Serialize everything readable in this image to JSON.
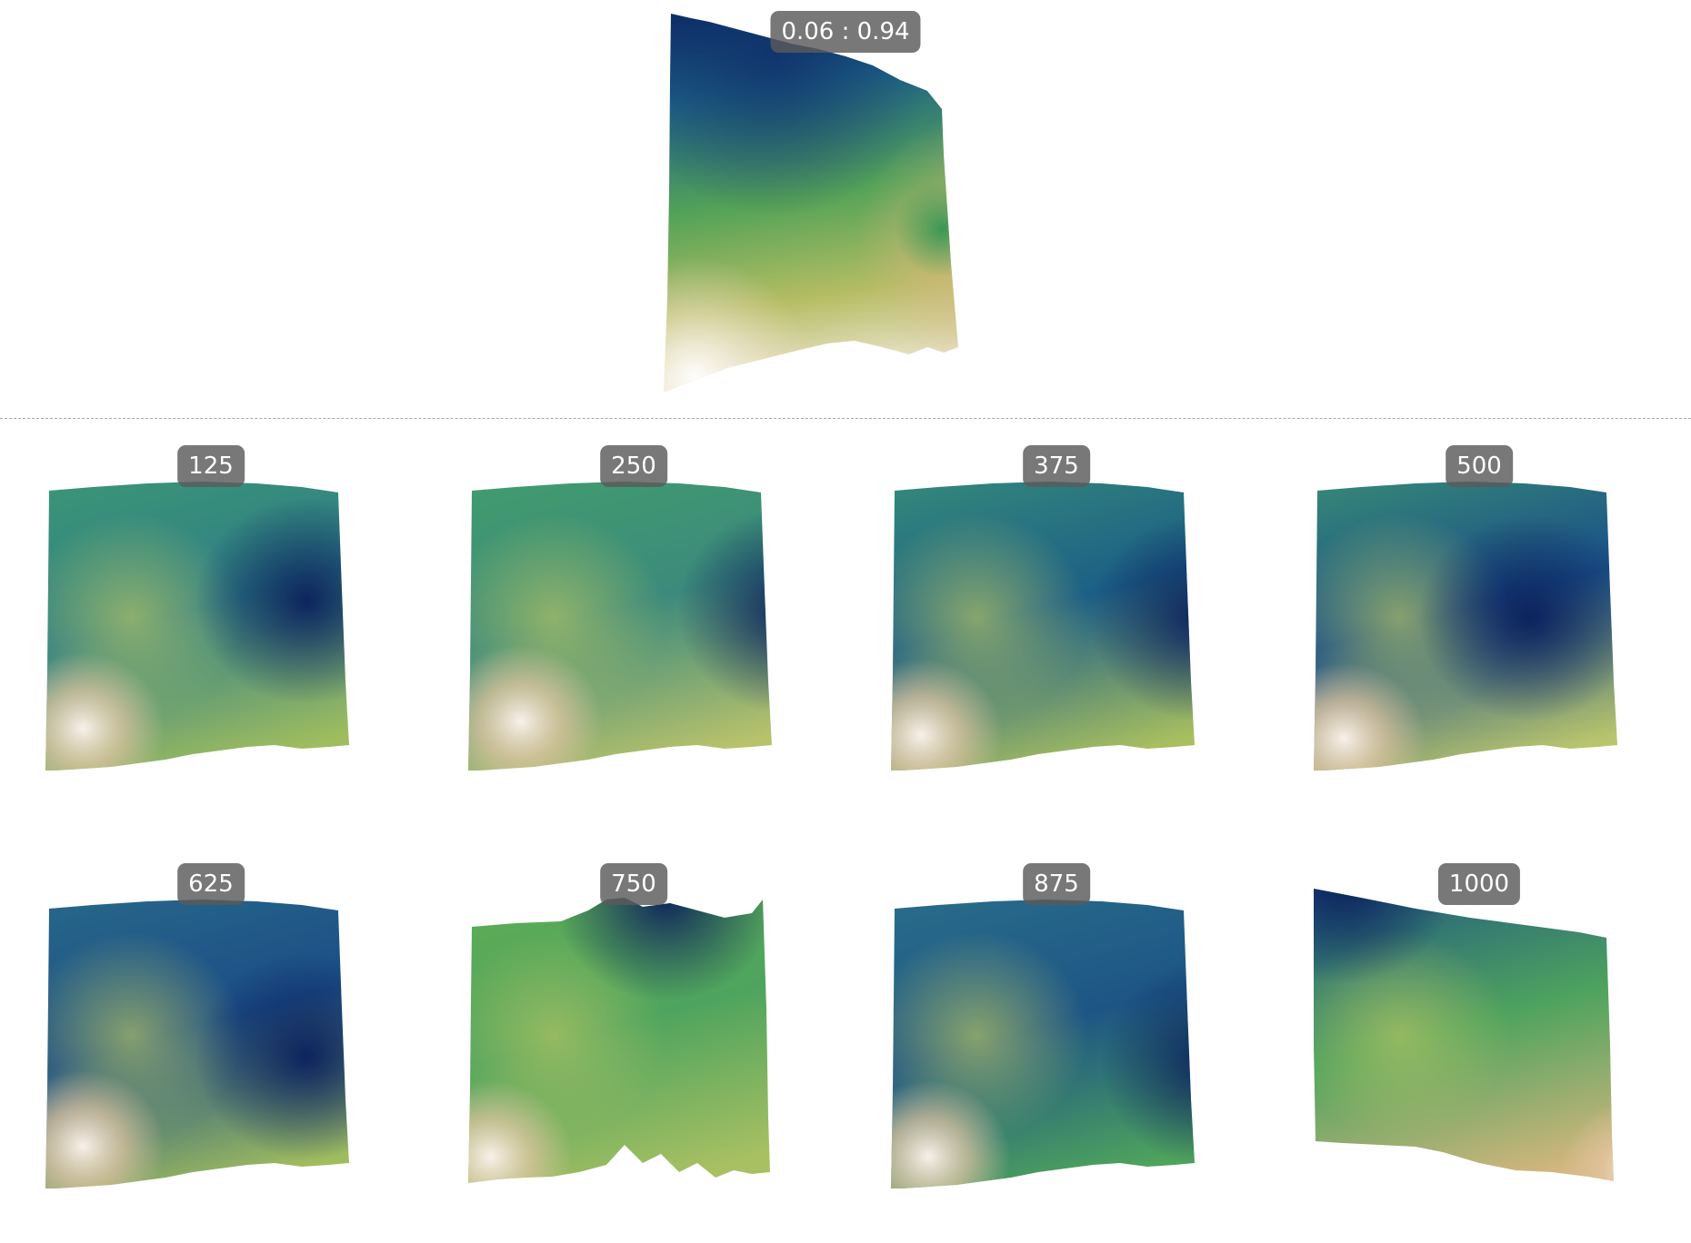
{
  "hero": {
    "label": "0.06 : 0.94",
    "colors": {
      "a": "#0d2d6b",
      "b": "#2f7f8a",
      "c": "#6fb04f",
      "d": "#d8c98b",
      "e": "#fff8f4"
    }
  },
  "grid": [
    {
      "label": "125"
    },
    {
      "label": "250"
    },
    {
      "label": "375"
    },
    {
      "label": "500"
    },
    {
      "label": "625"
    },
    {
      "label": "750"
    },
    {
      "label": "875"
    },
    {
      "label": "1000"
    }
  ],
  "colormap": {
    "name": "gist_earth",
    "stops": [
      "#0a1f5c",
      "#19527f",
      "#2f8283",
      "#4fa35c",
      "#9fbb5a",
      "#d5b77f",
      "#f7ece6"
    ]
  }
}
